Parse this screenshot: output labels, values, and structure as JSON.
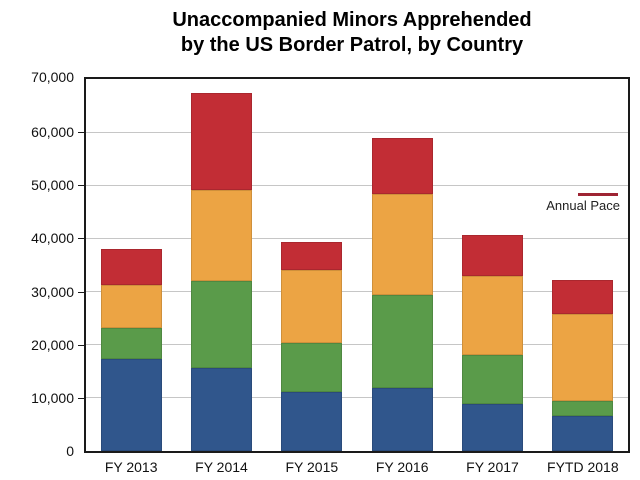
{
  "header": {
    "title": "Unaccompanied Minors Apprehended by the US Border Patrol, by Country"
  },
  "chart_data": {
    "type": "bar",
    "subtype": "stacked",
    "title": "Unaccompanied Minors Apprehended by the US Border Patrol, by Country",
    "title_lines": [
      "Unaccompanied Minors Apprehended",
      "by the US Border Patrol, by Country"
    ],
    "xlabel": "",
    "ylabel": "",
    "categories": [
      "FY 2013",
      "FY 2014",
      "FY 2015",
      "FY 2016",
      "FY 2017",
      "FYTD 2018"
    ],
    "series": [
      {
        "name": "blue-bottom",
        "color": "#30568C",
        "values": [
          17240,
          15634,
          11012,
          11926,
          8877,
          6600
        ]
      },
      {
        "name": "green",
        "color": "#5A9B4A",
        "values": [
          5990,
          16404,
          9389,
          17512,
          9143,
          2800
        ]
      },
      {
        "name": "orange",
        "color": "#ECA444",
        "values": [
          8068,
          17057,
          13589,
          18913,
          14827,
          16300
        ]
      },
      {
        "name": "red-top",
        "color": "#C22D35",
        "values": [
          6747,
          18244,
          5409,
          10468,
          7784,
          6500
        ]
      }
    ],
    "totals": [
      38045,
      67339,
      39399,
      58819,
      40631,
      32200
    ],
    "annotation": {
      "label": "Annual Pace",
      "value": 48300,
      "color": "#9E2433"
    },
    "ylim": [
      0,
      70000
    ],
    "ytick_values": [
      0,
      10000,
      20000,
      30000,
      40000,
      50000,
      60000,
      70000
    ],
    "ytick_labels": [
      "0",
      "10,000",
      "20,000",
      "30,000",
      "40,000",
      "50,000",
      "60,000",
      "70,000"
    ],
    "grid": true,
    "legend_entries": [
      "Annual Pace"
    ],
    "legend_position": "right-middle",
    "colors": {
      "grid": "#c6c6c6",
      "axis_border": "#1a1a1a",
      "background": "#ffffff"
    }
  }
}
